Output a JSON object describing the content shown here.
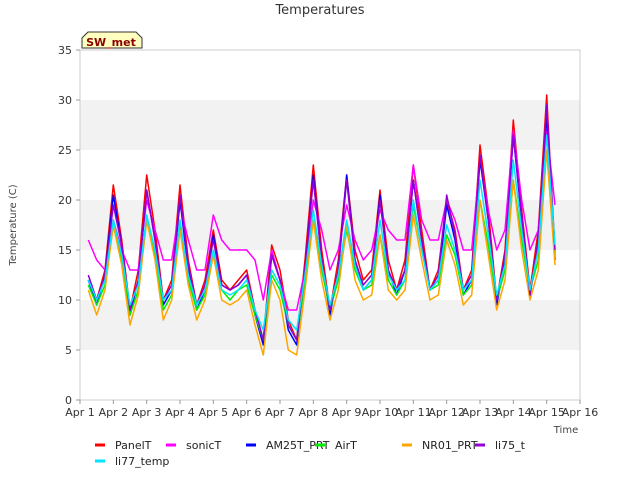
{
  "chart_data": {
    "type": "line",
    "title": "Temperatures",
    "xlabel": "Time",
    "ylabel": "Temperature (C)",
    "site_label": "SW_met",
    "ylim": [
      0,
      35
    ],
    "xlim": [
      1,
      16
    ],
    "y_ticks": [
      0,
      5,
      10,
      15,
      20,
      25,
      30,
      35
    ],
    "x_ticks": [
      {
        "pos": 1,
        "label": "Apr 1"
      },
      {
        "pos": 2,
        "label": "Apr 2"
      },
      {
        "pos": 3,
        "label": "Apr 3"
      },
      {
        "pos": 4,
        "label": "Apr 4"
      },
      {
        "pos": 5,
        "label": "Apr 5"
      },
      {
        "pos": 6,
        "label": "Apr 6"
      },
      {
        "pos": 7,
        "label": "Apr 7"
      },
      {
        "pos": 8,
        "label": "Apr 8"
      },
      {
        "pos": 9,
        "label": "Apr 9"
      },
      {
        "pos": 10,
        "label": "Apr 10"
      },
      {
        "pos": 11,
        "label": "Apr 11"
      },
      {
        "pos": 12,
        "label": "Apr 12"
      },
      {
        "pos": 13,
        "label": "Apr 13"
      },
      {
        "pos": 14,
        "label": "Apr 14"
      },
      {
        "pos": 15,
        "label": "Apr 15"
      },
      {
        "pos": 16,
        "label": "Apr 16"
      }
    ],
    "x": [
      1.25,
      1.5,
      1.75,
      2.0,
      2.25,
      2.5,
      2.75,
      3.0,
      3.25,
      3.5,
      3.75,
      4.0,
      4.25,
      4.5,
      4.75,
      5.0,
      5.25,
      5.5,
      5.75,
      6.0,
      6.25,
      6.5,
      6.75,
      7.0,
      7.25,
      7.5,
      7.75,
      8.0,
      8.25,
      8.5,
      8.75,
      9.0,
      9.25,
      9.5,
      9.75,
      10.0,
      10.25,
      10.5,
      10.75,
      11.0,
      11.25,
      11.5,
      11.75,
      12.0,
      12.25,
      12.5,
      12.75,
      13.0,
      13.25,
      13.5,
      13.75,
      14.0,
      14.25,
      14.5,
      14.75,
      15.0,
      15.25
    ],
    "series": [
      {
        "name": "PanelT",
        "color": "#ff0000",
        "values": [
          12,
          10,
          13,
          21.5,
          16,
          9,
          13,
          22.5,
          17,
          10,
          12,
          21.5,
          14,
          9.5,
          12,
          17,
          12,
          11,
          12,
          13,
          9,
          6,
          15.5,
          13,
          8,
          6,
          14,
          23.5,
          15,
          9,
          14,
          22.5,
          15,
          12,
          13,
          21,
          14,
          11,
          14,
          23.5,
          17,
          11,
          13,
          20,
          17,
          11,
          13,
          25.5,
          19,
          10,
          15,
          28,
          19,
          11,
          17,
          30.5,
          14
        ]
      },
      {
        "name": "sonicT",
        "color": "#ff00ff",
        "values": [
          16,
          14,
          13,
          18,
          15,
          13,
          13,
          20,
          17,
          14,
          14,
          19.5,
          16,
          13,
          13,
          18.5,
          16,
          15,
          15,
          15,
          14,
          10,
          15,
          12,
          9,
          9,
          13,
          20,
          17,
          13,
          15,
          19.5,
          16,
          14,
          15,
          19,
          17,
          16,
          16,
          23.5,
          18,
          16,
          16,
          20,
          18,
          15,
          15,
          24,
          19,
          15,
          17,
          27,
          20,
          15,
          17,
          27,
          19.5
        ]
      },
      {
        "name": "AM25T_PRT",
        "color": "#0000ff",
        "values": [
          12,
          9.5,
          12.5,
          20.5,
          15.5,
          8.5,
          12,
          21,
          16,
          9.5,
          11,
          20,
          13,
          9,
          11,
          16.5,
          11.5,
          11,
          11.5,
          12.5,
          8.5,
          5.5,
          14.5,
          12,
          7,
          5.5,
          13,
          22.5,
          14,
          8.5,
          13,
          22.5,
          14,
          11,
          12,
          20.5,
          13,
          10.5,
          13,
          22,
          16,
          11,
          12,
          19.5,
          16,
          10.5,
          12,
          24,
          18,
          9.5,
          14,
          26.5,
          18,
          10.5,
          16,
          28.5,
          14
        ]
      },
      {
        "name": "AirT",
        "color": "#00ee00",
        "values": [
          11.5,
          9.5,
          11.5,
          17.5,
          14,
          8.5,
          11,
          18,
          14.5,
          9,
          10.5,
          17.5,
          12,
          9,
          10.5,
          14.5,
          11,
          10,
          11,
          11.5,
          8.5,
          6,
          12.5,
          11,
          7.5,
          6,
          12,
          18,
          13,
          9,
          12,
          17,
          13,
          11,
          11.5,
          16.5,
          12,
          10.5,
          12,
          19.5,
          15,
          11,
          11.5,
          16.5,
          14.5,
          10.5,
          11.5,
          20,
          15.5,
          10,
          13,
          22,
          16,
          11,
          14,
          25,
          14
        ]
      },
      {
        "name": "NR01_PRT",
        "color": "#ffa500",
        "values": [
          11,
          8.5,
          11,
          17.5,
          13.5,
          7.5,
          10.5,
          18,
          14,
          8,
          10,
          17,
          11.5,
          8,
          10,
          14.5,
          10,
          9.5,
          10,
          11,
          7.5,
          4.5,
          12,
          10,
          5,
          4.5,
          11,
          18,
          12,
          8,
          11,
          17.5,
          12,
          10,
          10.5,
          16.5,
          11,
          10,
          11,
          18.5,
          14,
          10,
          10.5,
          16,
          13.5,
          9.5,
          10.5,
          20,
          14.5,
          9,
          12,
          22,
          15,
          10,
          13,
          25,
          13.5
        ]
      },
      {
        "name": "li75_t",
        "color": "#9400d3",
        "values": [
          12.5,
          10,
          12.5,
          19.5,
          15.5,
          9,
          12,
          21,
          16,
          10,
          11.5,
          20.5,
          13.5,
          9.5,
          11.5,
          16,
          11.5,
          11,
          11.5,
          12.5,
          9,
          6,
          14.5,
          12,
          7.5,
          6,
          13,
          22,
          14,
          9,
          13,
          22,
          14,
          11.5,
          12.5,
          20,
          13,
          11,
          13,
          22,
          16,
          11,
          12.5,
          20.5,
          16.5,
          11,
          12.5,
          24.5,
          18,
          10,
          14.5,
          26.5,
          18.5,
          10.5,
          16,
          29.5,
          15
        ]
      },
      {
        "name": "li77_temp",
        "color": "#00e5ff",
        "values": [
          12,
          10,
          12,
          18,
          14.5,
          9.5,
          11.5,
          18.5,
          15,
          10,
          11,
          18,
          12.5,
          9.5,
          11,
          15,
          11,
          10.5,
          11,
          12,
          9,
          7,
          13,
          11.5,
          8,
          7,
          12.5,
          19,
          13.5,
          9.5,
          12.5,
          18,
          13.5,
          11,
          12,
          18,
          12.5,
          11,
          12,
          20,
          15,
          11,
          12,
          17.5,
          15,
          11,
          12,
          22,
          16.5,
          10.5,
          13.5,
          24,
          17,
          11,
          15,
          26.5,
          15.5
        ]
      }
    ]
  }
}
